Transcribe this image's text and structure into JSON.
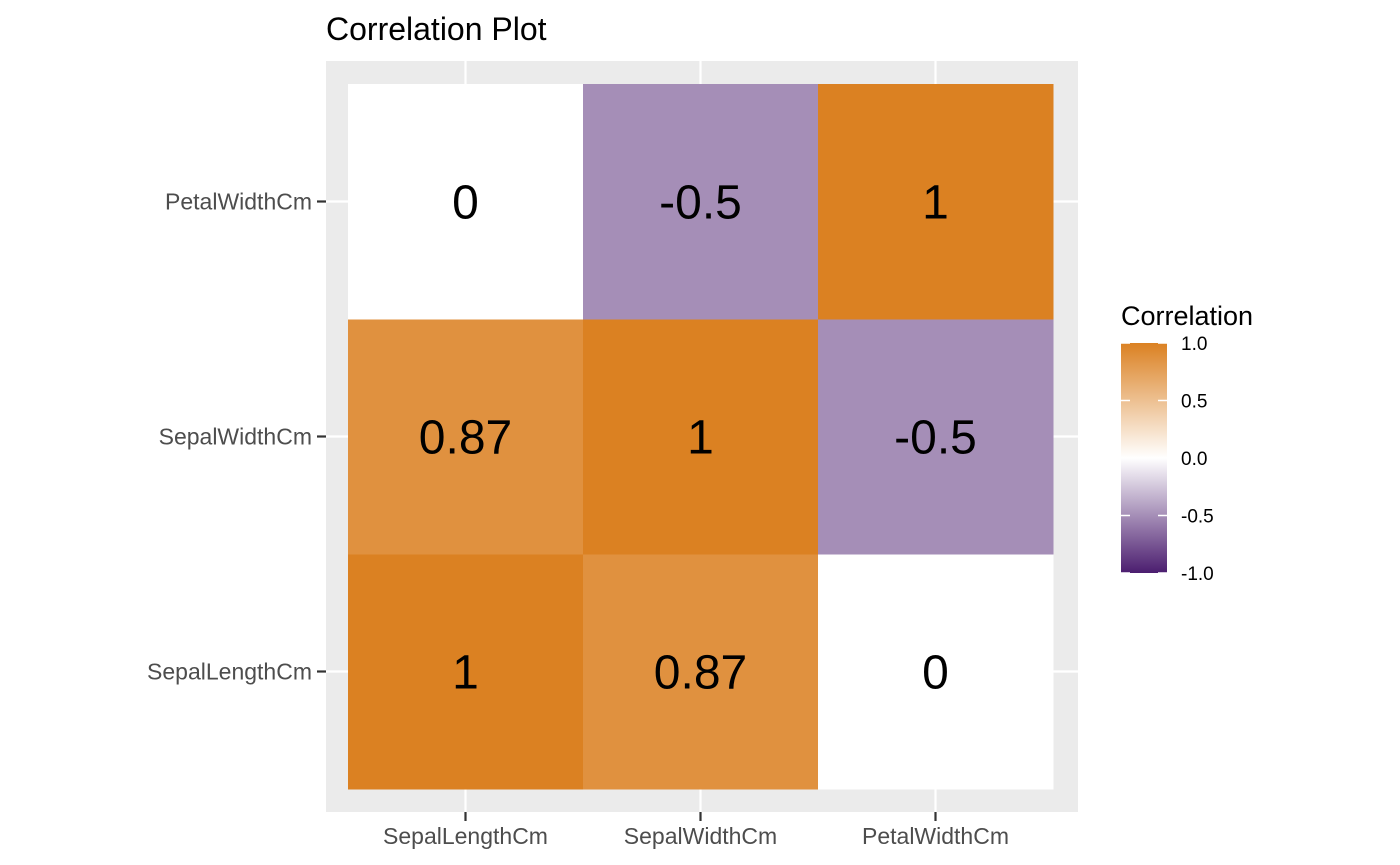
{
  "chart_data": {
    "type": "heatmap",
    "title": "Correlation Plot",
    "xlabel": "",
    "ylabel": "",
    "x_categories": [
      "SepalLengthCm",
      "SepalWidthCm",
      "PetalWidthCm"
    ],
    "y_categories": [
      "SepalLengthCm",
      "SepalWidthCm",
      "PetalWidthCm"
    ],
    "cells": [
      {
        "x": "SepalLengthCm",
        "y": "SepalLengthCm",
        "value": 1,
        "label": "1"
      },
      {
        "x": "SepalWidthCm",
        "y": "SepalLengthCm",
        "value": 0.87,
        "label": "0.87"
      },
      {
        "x": "PetalWidthCm",
        "y": "SepalLengthCm",
        "value": 0,
        "label": "0"
      },
      {
        "x": "SepalLengthCm",
        "y": "SepalWidthCm",
        "value": 0.87,
        "label": "0.87"
      },
      {
        "x": "SepalWidthCm",
        "y": "SepalWidthCm",
        "value": 1,
        "label": "1"
      },
      {
        "x": "PetalWidthCm",
        "y": "SepalWidthCm",
        "value": -0.5,
        "label": "-0.5"
      },
      {
        "x": "SepalLengthCm",
        "y": "PetalWidthCm",
        "value": 0,
        "label": "0"
      },
      {
        "x": "SepalWidthCm",
        "y": "PetalWidthCm",
        "value": -0.5,
        "label": "-0.5"
      },
      {
        "x": "PetalWidthCm",
        "y": "PetalWidthCm",
        "value": 1,
        "label": "1"
      }
    ],
    "legend": {
      "title": "Correlation",
      "placement": "right",
      "range": [
        -1,
        1
      ],
      "ticks": [
        1.0,
        0.5,
        0.0,
        -0.5,
        -1.0
      ],
      "tick_labels": [
        "1.0",
        "0.5",
        "0.0",
        "-0.5",
        "-1.0"
      ]
    },
    "colors": {
      "high": "#DB8122",
      "mid": "#FFFFFF",
      "low": "#4B1D6F",
      "panel_background": "#EBEBEB",
      "grid": "#FFFFFF"
    }
  }
}
